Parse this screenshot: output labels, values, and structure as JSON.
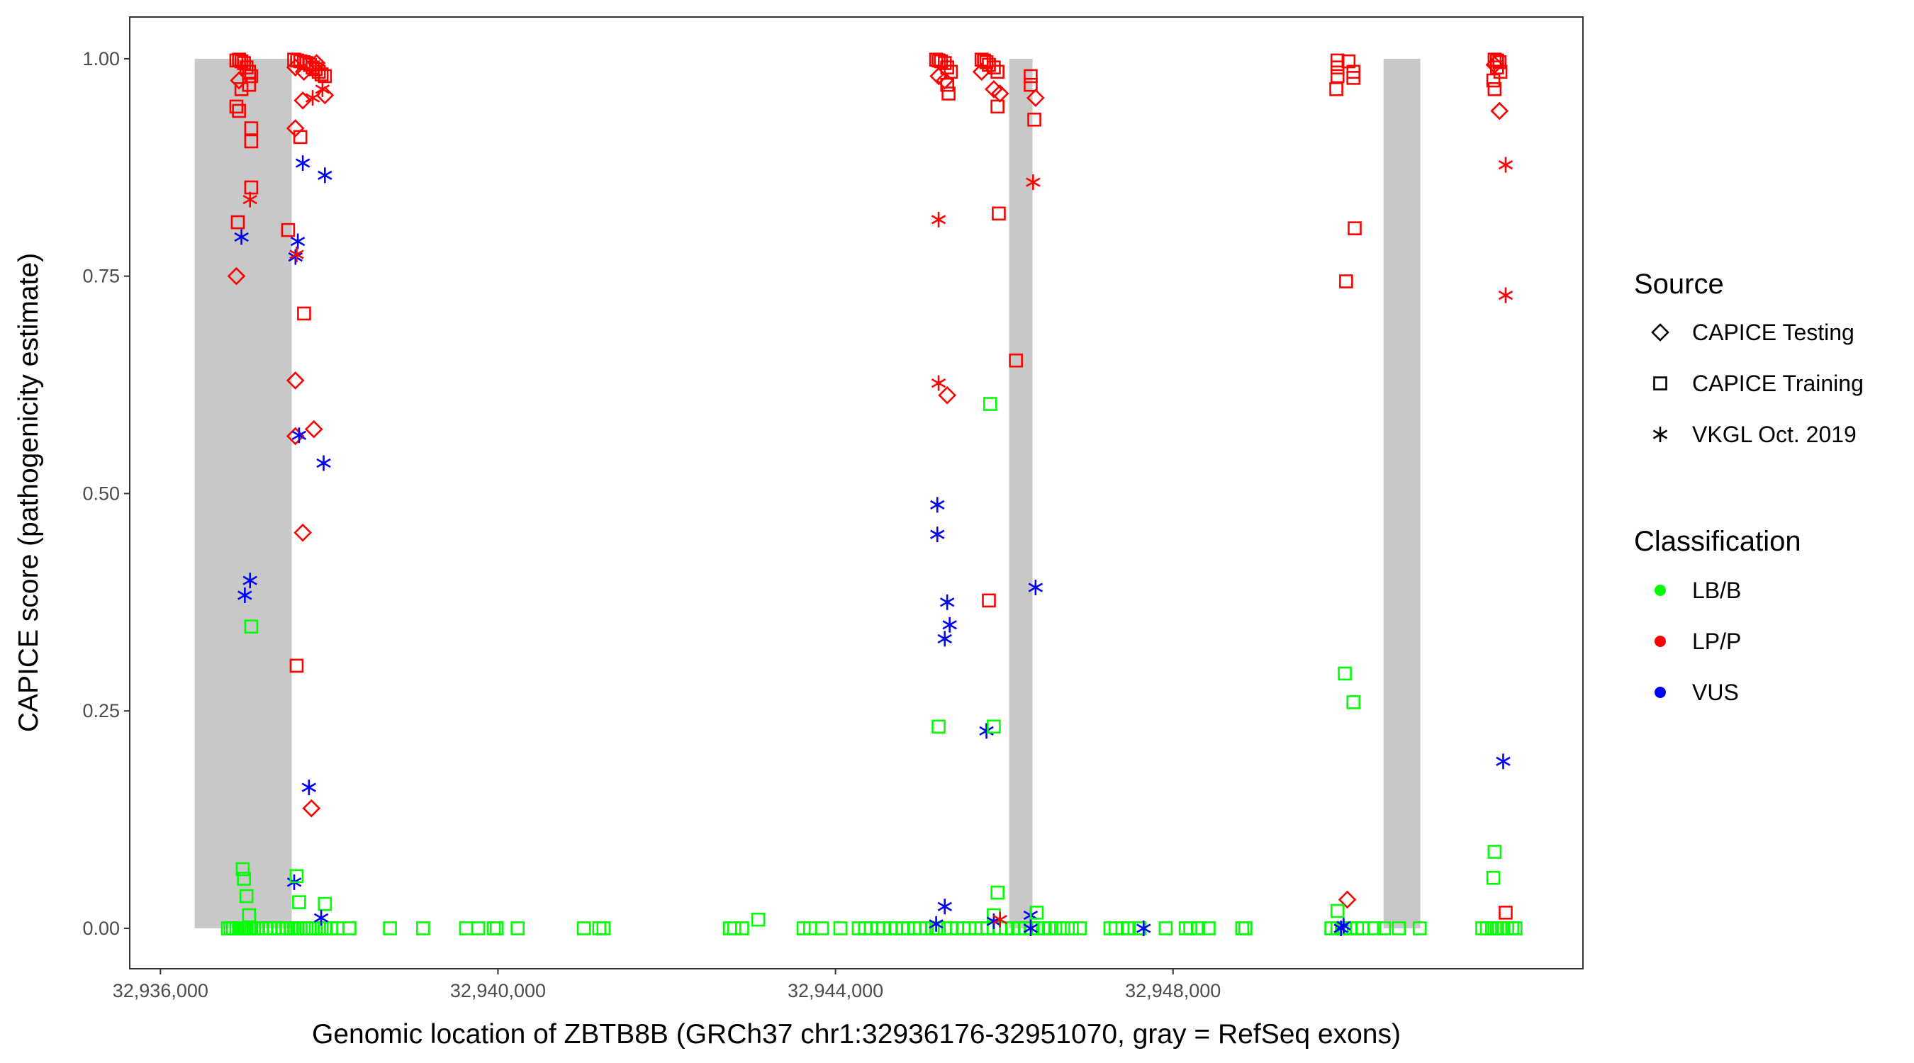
{
  "chart_data": {
    "type": "scatter",
    "xlabel": "Genomic location of ZBTB8B (GRCh37 chr1:32936176-32951070, gray = RefSeq exons)",
    "ylabel": "CAPICE score (pathogenicity estimate)",
    "xlim": [
      32935636,
      32952858
    ],
    "ylim": [
      -0.0465,
      1.048
    ],
    "x_ticks": [
      32936000,
      32940000,
      32944000,
      32948000
    ],
    "x_tick_labels": [
      "32,936,000",
      "32,940,000",
      "32,944,000",
      "32,948,000"
    ],
    "y_ticks": [
      0,
      0.25,
      0.5,
      0.75,
      1.0
    ],
    "y_tick_labels": [
      "0.00",
      "0.25",
      "0.50",
      "0.75",
      "1.00"
    ],
    "grid": false,
    "exons": [
      [
        32936407,
        32937556
      ],
      [
        32946058,
        32946335
      ],
      [
        32950495,
        32950931
      ]
    ],
    "legend_placement": "right",
    "legend": {
      "source_title": "Source",
      "sources": [
        "CAPICE Testing",
        "CAPICE Training",
        "VKGL Oct. 2019"
      ],
      "source_shapes": [
        "diamond",
        "square",
        "asterisk"
      ],
      "classification_title": "Classification",
      "classes": [
        "LB/B",
        "LP/P",
        "VUS"
      ],
      "class_colors": [
        "#00FF00",
        "#FF0000",
        "#0000FF"
      ]
    },
    "exon_color": "#C8C8C8",
    "point_format": "[genomic_position, score, source_index, class_index]",
    "points": [
      [
        32936931,
        0.999,
        1,
        1
      ],
      [
        32936900,
        0.998,
        1,
        1
      ],
      [
        32936960,
        0.997,
        1,
        1
      ],
      [
        32936990,
        0.995,
        1,
        1
      ],
      [
        32937020,
        0.99,
        1,
        1
      ],
      [
        32937050,
        0.985,
        1,
        1
      ],
      [
        32937076,
        0.98,
        1,
        1
      ],
      [
        32936931,
        0.975,
        0,
        1
      ],
      [
        32937050,
        0.97,
        1,
        1
      ],
      [
        32936960,
        0.965,
        1,
        1
      ],
      [
        32936900,
        0.945,
        1,
        1
      ],
      [
        32936931,
        0.94,
        1,
        1
      ],
      [
        32937076,
        0.92,
        1,
        1
      ],
      [
        32937076,
        0.905,
        1,
        1
      ],
      [
        32937076,
        0.852,
        1,
        1
      ],
      [
        32937062,
        0.838,
        2,
        1
      ],
      [
        32936917,
        0.812,
        1,
        1
      ],
      [
        32936960,
        0.795,
        2,
        2
      ],
      [
        32936900,
        0.75,
        0,
        1
      ],
      [
        32937062,
        0.4,
        2,
        2
      ],
      [
        32937000,
        0.383,
        2,
        2
      ],
      [
        32937076,
        0.347,
        1,
        0
      ],
      [
        32936975,
        0.068,
        1,
        0
      ],
      [
        32936990,
        0.057,
        1,
        0
      ],
      [
        32937020,
        0.037,
        1,
        0
      ],
      [
        32937050,
        0.015,
        1,
        0
      ],
      [
        32937585,
        0.999,
        1,
        1
      ],
      [
        32937620,
        0.998,
        1,
        1
      ],
      [
        32937658,
        0.997,
        1,
        1
      ],
      [
        32937700,
        0.996,
        1,
        1
      ],
      [
        32937731,
        0.995,
        1,
        1
      ],
      [
        32937770,
        0.993,
        1,
        1
      ],
      [
        32937804,
        0.99,
        1,
        1
      ],
      [
        32937840,
        0.988,
        1,
        1
      ],
      [
        32937876,
        0.985,
        1,
        1
      ],
      [
        32937910,
        0.982,
        1,
        1
      ],
      [
        32937949,
        0.98,
        1,
        1
      ],
      [
        32937600,
        0.99,
        0,
        1
      ],
      [
        32937700,
        0.985,
        0,
        1
      ],
      [
        32937850,
        0.995,
        0,
        1
      ],
      [
        32937599,
        0.92,
        0,
        1
      ],
      [
        32937658,
        0.91,
        1,
        1
      ],
      [
        32937687,
        0.952,
        0,
        1
      ],
      [
        32937804,
        0.955,
        2,
        1
      ],
      [
        32937949,
        0.958,
        0,
        1
      ],
      [
        32937920,
        0.965,
        2,
        1
      ],
      [
        32937687,
        0.88,
        2,
        2
      ],
      [
        32937949,
        0.866,
        2,
        2
      ],
      [
        32937513,
        0.803,
        1,
        1
      ],
      [
        32937628,
        0.79,
        2,
        2
      ],
      [
        32937600,
        0.772,
        2,
        2
      ],
      [
        32937614,
        0.775,
        2,
        1
      ],
      [
        32937702,
        0.707,
        1,
        1
      ],
      [
        32937599,
        0.63,
        0,
        1
      ],
      [
        32937599,
        0.566,
        0,
        1
      ],
      [
        32937643,
        0.567,
        2,
        2
      ],
      [
        32937818,
        0.574,
        0,
        1
      ],
      [
        32937934,
        0.535,
        2,
        2
      ],
      [
        32937687,
        0.455,
        0,
        1
      ],
      [
        32937614,
        0.302,
        1,
        1
      ],
      [
        32937760,
        0.162,
        2,
        2
      ],
      [
        32937789,
        0.138,
        0,
        1
      ],
      [
        32937585,
        0.053,
        2,
        2
      ],
      [
        32937614,
        0.06,
        1,
        0
      ],
      [
        32937643,
        0.03,
        1,
        0
      ],
      [
        32937949,
        0.028,
        1,
        0
      ],
      [
        32937905,
        0.012,
        2,
        2
      ],
      [
        32945193,
        0.999,
        1,
        1
      ],
      [
        32945222,
        0.998,
        1,
        1
      ],
      [
        32945250,
        0.997,
        1,
        1
      ],
      [
        32945295,
        0.995,
        1,
        1
      ],
      [
        32945324,
        0.99,
        1,
        1
      ],
      [
        32945367,
        0.985,
        1,
        1
      ],
      [
        32945222,
        0.98,
        0,
        1
      ],
      [
        32945295,
        0.975,
        0,
        1
      ],
      [
        32945324,
        0.97,
        1,
        1
      ],
      [
        32945340,
        0.96,
        1,
        1
      ],
      [
        32945222,
        0.815,
        2,
        1
      ],
      [
        32945222,
        0.627,
        2,
        1
      ],
      [
        32945324,
        0.613,
        0,
        1
      ],
      [
        32945207,
        0.487,
        2,
        2
      ],
      [
        32945207,
        0.453,
        2,
        2
      ],
      [
        32945324,
        0.375,
        2,
        2
      ],
      [
        32945353,
        0.349,
        2,
        2
      ],
      [
        32945295,
        0.333,
        2,
        2
      ],
      [
        32945222,
        0.232,
        1,
        0
      ],
      [
        32945295,
        0.025,
        2,
        2
      ],
      [
        32945193,
        0.005,
        2,
        2
      ],
      [
        32945731,
        0.999,
        1,
        1
      ],
      [
        32945760,
        0.998,
        1,
        1
      ],
      [
        32945789,
        0.996,
        1,
        1
      ],
      [
        32945818,
        0.993,
        1,
        1
      ],
      [
        32945876,
        0.99,
        1,
        1
      ],
      [
        32945920,
        0.985,
        1,
        1
      ],
      [
        32945731,
        0.985,
        0,
        1
      ],
      [
        32945876,
        0.965,
        0,
        1
      ],
      [
        32945949,
        0.96,
        0,
        1
      ],
      [
        32945920,
        0.945,
        1,
        1
      ],
      [
        32945935,
        0.822,
        1,
        1
      ],
      [
        32945833,
        0.603,
        1,
        0
      ],
      [
        32945818,
        0.377,
        1,
        1
      ],
      [
        32945789,
        0.227,
        2,
        2
      ],
      [
        32945876,
        0.232,
        1,
        0
      ],
      [
        32945920,
        0.041,
        1,
        0
      ],
      [
        32945876,
        0.015,
        1,
        0
      ],
      [
        32945876,
        0.008,
        2,
        2
      ],
      [
        32945950,
        0.01,
        2,
        1
      ],
      [
        32946313,
        0.98,
        1,
        1
      ],
      [
        32946313,
        0.97,
        1,
        1
      ],
      [
        32946371,
        0.955,
        0,
        1
      ],
      [
        32946356,
        0.93,
        1,
        1
      ],
      [
        32946342,
        0.858,
        2,
        1
      ],
      [
        32946138,
        0.653,
        1,
        1
      ],
      [
        32946371,
        0.392,
        2,
        2
      ],
      [
        32946313,
        0.015,
        2,
        2
      ],
      [
        32946385,
        0.018,
        1,
        0
      ],
      [
        32946313,
        0.0,
        2,
        2
      ],
      [
        32947651,
        0.0,
        2,
        2
      ],
      [
        32949949,
        0.998,
        1,
        1
      ],
      [
        32950080,
        0.997,
        1,
        1
      ],
      [
        32949949,
        0.99,
        1,
        1
      ],
      [
        32950138,
        0.985,
        1,
        1
      ],
      [
        32949949,
        0.98,
        1,
        1
      ],
      [
        32950138,
        0.978,
        1,
        1
      ],
      [
        32949935,
        0.965,
        1,
        1
      ],
      [
        32950153,
        0.805,
        1,
        1
      ],
      [
        32950051,
        0.744,
        1,
        1
      ],
      [
        32950036,
        0.293,
        1,
        0
      ],
      [
        32950138,
        0.26,
        1,
        0
      ],
      [
        32950065,
        0.033,
        0,
        1
      ],
      [
        32949949,
        0.02,
        1,
        0
      ],
      [
        32950022,
        0.003,
        2,
        2
      ],
      [
        32949990,
        0.0,
        2,
        2
      ],
      [
        32951811,
        0.999,
        1,
        1
      ],
      [
        32951840,
        0.998,
        1,
        1
      ],
      [
        32951869,
        0.996,
        1,
        1
      ],
      [
        32951811,
        0.993,
        0,
        1
      ],
      [
        32951840,
        0.99,
        1,
        1
      ],
      [
        32951880,
        0.985,
        1,
        1
      ],
      [
        32951796,
        0.975,
        1,
        1
      ],
      [
        32951811,
        0.965,
        1,
        1
      ],
      [
        32951869,
        0.94,
        0,
        1
      ],
      [
        32951942,
        0.878,
        2,
        1
      ],
      [
        32951942,
        0.728,
        2,
        1
      ],
      [
        32951913,
        0.192,
        2,
        2
      ],
      [
        32951811,
        0.088,
        1,
        0
      ],
      [
        32951796,
        0.058,
        1,
        0
      ],
      [
        32951942,
        0.018,
        1,
        1
      ],
      [
        32943084,
        0.01,
        1,
        0
      ]
    ],
    "lbb_training_zero_positions": [
      32936800,
      32936830,
      32936860,
      32936900,
      32936931,
      32936960,
      32936990,
      32937020,
      32937050,
      32937076,
      32937110,
      32937149,
      32937200,
      32937250,
      32937300,
      32937350,
      32937400,
      32937450,
      32937500,
      32937550,
      32937585,
      32937620,
      32937658,
      32937700,
      32937731,
      32937770,
      32937804,
      32937840,
      32937876,
      32937910,
      32937949,
      32938022,
      32938100,
      32938240,
      32938720,
      32939113,
      32939622,
      32939767,
      32939950,
      32939985,
      32940233,
      32941018,
      32941200,
      32941251,
      32942749,
      32942800,
      32942894,
      32943622,
      32943700,
      32943840,
      32944058,
      32944276,
      32944350,
      32944420,
      32944500,
      32944567,
      32944650,
      32944720,
      32944800,
      32944858,
      32944930,
      32945000,
      32945080,
      32945150,
      32945193,
      32945222,
      32945295,
      32945367,
      32945440,
      32945520,
      32945585,
      32945660,
      32945731,
      32945800,
      32945876,
      32945950,
      32946020,
      32946100,
      32946180,
      32946250,
      32946313,
      32946400,
      32946480,
      32946530,
      32946604,
      32946700,
      32946800,
      32946895,
      32947258,
      32947320,
      32947400,
      32947476,
      32947600,
      32947913,
      32948150,
      32948204,
      32948300,
      32948422,
      32948820,
      32948858,
      32949876,
      32949949,
      32950000,
      32950036,
      32950100,
      32950180,
      32950250,
      32950385,
      32950500,
      32950676,
      32950924,
      32951665,
      32951720,
      32951780,
      32951840,
      32951900,
      32951960,
      32952020,
      32952058
    ]
  }
}
